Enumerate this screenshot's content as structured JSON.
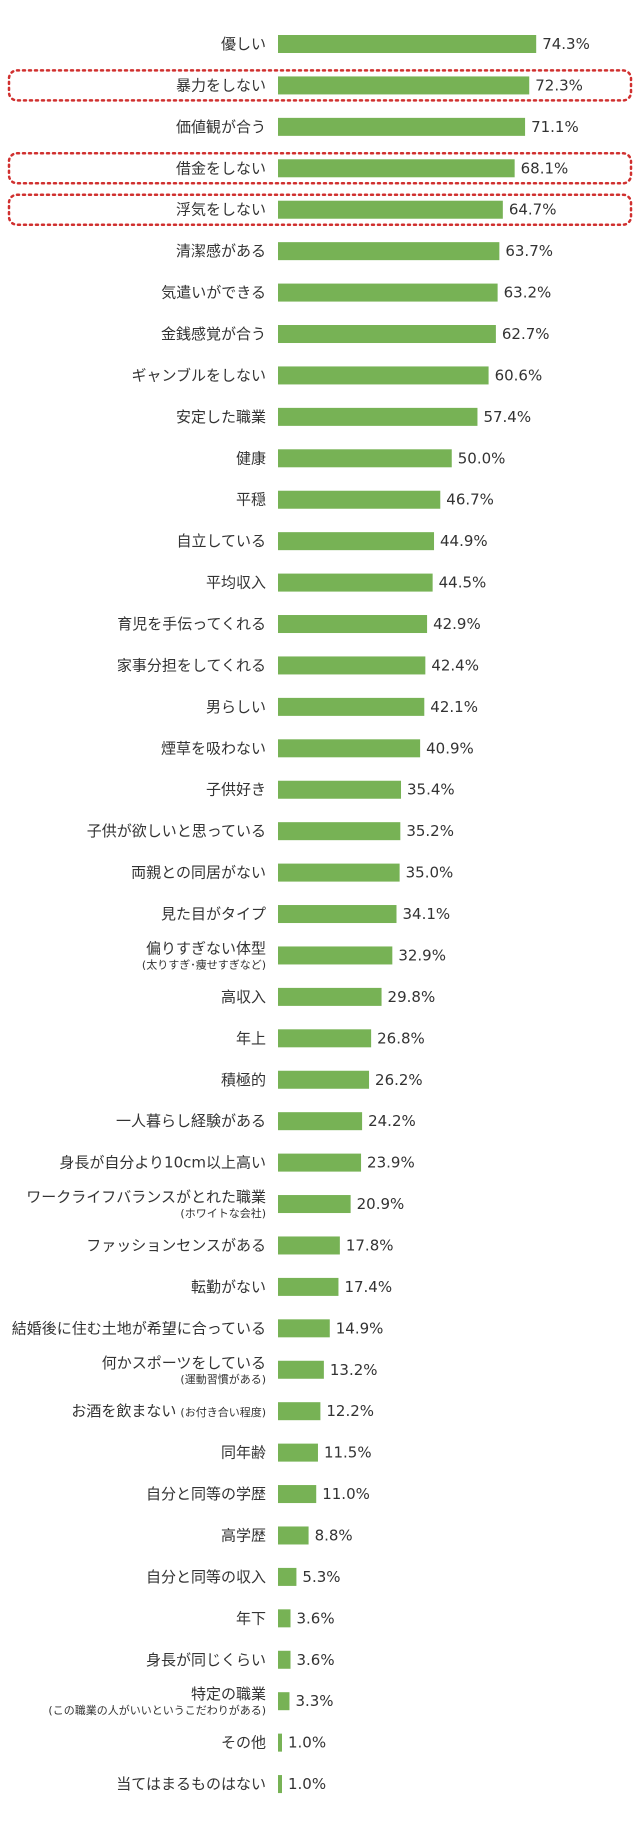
{
  "chart_data": {
    "type": "bar",
    "orientation": "horizontal",
    "unit": "%",
    "xlim": [
      0,
      100
    ],
    "grid": false,
    "legend": "none",
    "bar_color": "#77b255",
    "highlight_color": "#d0302f",
    "highlighted": [
      1,
      3,
      4
    ],
    "categories": [
      {
        "label": "優しい"
      },
      {
        "label": "暴力をしない"
      },
      {
        "label": "価値観が合う"
      },
      {
        "label": "借金をしない"
      },
      {
        "label": "浮気をしない"
      },
      {
        "label": "清潔感がある"
      },
      {
        "label": "気遣いができる"
      },
      {
        "label": "金銭感覚が合う"
      },
      {
        "label": "ギャンブルをしない"
      },
      {
        "label": "安定した職業"
      },
      {
        "label": "健康"
      },
      {
        "label": "平穏"
      },
      {
        "label": "自立している"
      },
      {
        "label": "平均収入"
      },
      {
        "label": "育児を手伝ってくれる"
      },
      {
        "label": "家事分担をしてくれる"
      },
      {
        "label": "男らしい"
      },
      {
        "label": "煙草を吸わない"
      },
      {
        "label": "子供好き"
      },
      {
        "label": "子供が欲しいと思っている"
      },
      {
        "label": "両親との同居がない"
      },
      {
        "label": "見た目がタイプ"
      },
      {
        "label": "偏りすぎない体型",
        "sub": "(太りすぎ･痩せすぎなど)"
      },
      {
        "label": "高収入"
      },
      {
        "label": "年上"
      },
      {
        "label": "積極的"
      },
      {
        "label": "一人暮らし経験がある"
      },
      {
        "label": "身長が自分より10cm以上高い"
      },
      {
        "label": "ワークライフバランスがとれた職業",
        "sub": "(ホワイトな会社)"
      },
      {
        "label": "ファッションセンスがある"
      },
      {
        "label": "転勤がない"
      },
      {
        "label": "結婚後に住む土地が希望に合っている"
      },
      {
        "label": "何かスポーツをしている",
        "sub": "(運動習慣がある)"
      },
      {
        "label": "お酒を飲まない",
        "inline_sub": "(お付き合い程度)"
      },
      {
        "label": "同年齢"
      },
      {
        "label": "自分と同等の学歴"
      },
      {
        "label": "高学歴"
      },
      {
        "label": "自分と同等の収入"
      },
      {
        "label": "年下"
      },
      {
        "label": "身長が同じくらい"
      },
      {
        "label": "特定の職業",
        "sub": "(この職業の人がいいというこだわりがある)"
      },
      {
        "label": "その他"
      },
      {
        "label": "当てはまるものはない"
      }
    ],
    "values": [
      74.3,
      72.3,
      71.1,
      68.1,
      64.7,
      63.7,
      63.2,
      62.7,
      60.6,
      57.4,
      50.0,
      46.7,
      44.9,
      44.5,
      42.9,
      42.4,
      42.1,
      40.9,
      35.4,
      35.2,
      35.0,
      34.1,
      32.9,
      29.8,
      26.8,
      26.2,
      24.2,
      23.9,
      20.9,
      17.8,
      17.4,
      14.9,
      13.2,
      12.2,
      11.5,
      11.0,
      8.8,
      5.3,
      3.6,
      3.6,
      3.3,
      1.0,
      1.0
    ],
    "value_labels": [
      "74.3%",
      "72.3%",
      "71.1%",
      "68.1%",
      "64.7%",
      "63.7%",
      "63.2%",
      "62.7%",
      "60.6%",
      "57.4%",
      "50.0%",
      "46.7%",
      "44.9%",
      "44.5%",
      "42.9%",
      "42.4%",
      "42.1%",
      "40.9%",
      "35.4%",
      "35.2%",
      "35.0%",
      "34.1%",
      "32.9%",
      "29.8%",
      "26.8%",
      "26.2%",
      "24.2%",
      "23.9%",
      "20.9%",
      "17.8%",
      "17.4%",
      "14.9%",
      "13.2%",
      "12.2%",
      "11.5%",
      "11.0%",
      "8.8%",
      "5.3%",
      "3.6%",
      "3.6%",
      "3.3%",
      "1.0%",
      "1.0%"
    ]
  }
}
